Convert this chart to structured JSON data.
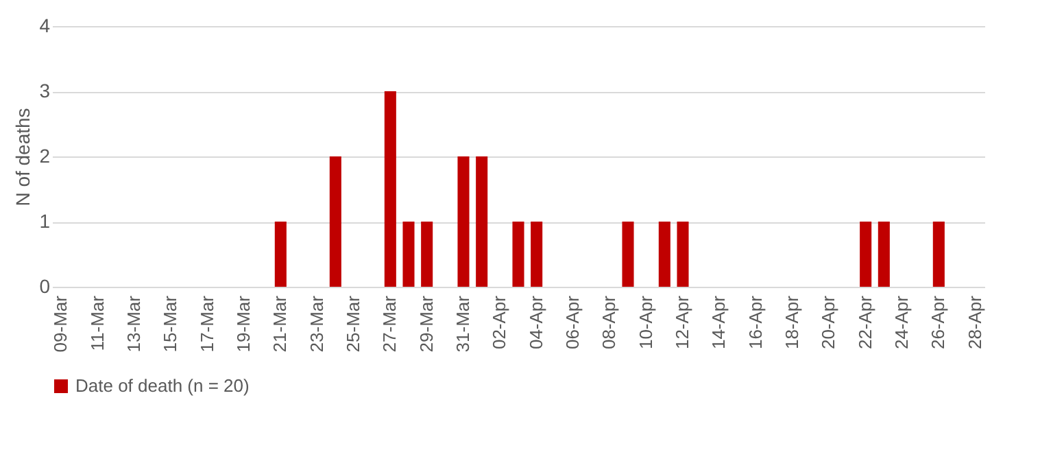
{
  "chart_data": {
    "type": "bar",
    "ylabel": "N of deaths",
    "categories": [
      "09-Mar",
      null,
      "11-Mar",
      null,
      "13-Mar",
      null,
      "15-Mar",
      null,
      "17-Mar",
      null,
      "19-Mar",
      null,
      "21-Mar",
      null,
      "23-Mar",
      null,
      "25-Mar",
      null,
      "27-Mar",
      null,
      "29-Mar",
      null,
      "31-Mar",
      null,
      "02-Apr",
      null,
      "04-Apr",
      null,
      "06-Apr",
      null,
      "08-Apr",
      null,
      "10-Apr",
      null,
      "12-Apr",
      null,
      "14-Apr",
      null,
      "16-Apr",
      null,
      "18-Apr",
      null,
      "20-Apr",
      null,
      "22-Apr",
      null,
      "24-Apr",
      null,
      "26-Apr",
      null,
      "28-Apr"
    ],
    "series": [
      {
        "name": "Date of death (n = 20)",
        "color": "#c00000",
        "values": [
          0,
          0,
          0,
          0,
          0,
          0,
          0,
          0,
          0,
          0,
          0,
          0,
          1,
          0,
          0,
          2,
          0,
          0,
          3,
          1,
          1,
          0,
          2,
          2,
          0,
          1,
          1,
          0,
          0,
          0,
          0,
          1,
          0,
          1,
          1,
          0,
          0,
          0,
          0,
          0,
          0,
          0,
          0,
          0,
          1,
          1,
          0,
          0,
          1,
          0,
          0
        ]
      }
    ],
    "ylim": [
      0,
      4
    ],
    "yticks": [
      0,
      1,
      2,
      3,
      4
    ],
    "grid": "y",
    "legend": "bottom"
  }
}
